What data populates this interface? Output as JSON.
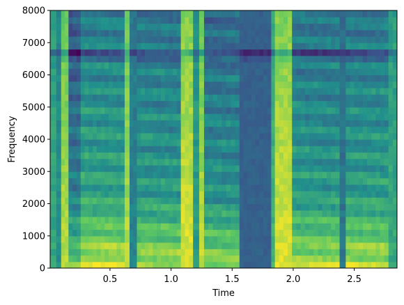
{
  "chart_data": {
    "type": "heatmap",
    "subtype": "spectrogram",
    "title": "",
    "xlabel": "Time",
    "ylabel": "Frequency",
    "xlim": [
      0.01,
      2.85
    ],
    "ylim": [
      0,
      8000
    ],
    "x_ticks": [
      0.5,
      1.0,
      1.5,
      2.0,
      2.5
    ],
    "x_tick_labels": [
      "0.5",
      "1.0",
      "1.5",
      "2.0",
      "2.5"
    ],
    "y_ticks": [
      0,
      1000,
      2000,
      3000,
      4000,
      5000,
      6000,
      7000,
      8000
    ],
    "y_tick_labels": [
      "0",
      "1000",
      "2000",
      "3000",
      "4000",
      "5000",
      "6000",
      "7000",
      "8000"
    ],
    "colormap": "viridis",
    "grid": false,
    "legend": "none",
    "dark_band_frequency": 6650,
    "segments": [
      {
        "t_start": 0.01,
        "t_end": 0.06,
        "level": 0.55,
        "kind": "noise"
      },
      {
        "t_start": 0.06,
        "t_end": 0.1,
        "level": 0.45,
        "kind": "noise"
      },
      {
        "t_start": 0.1,
        "t_end": 0.16,
        "level": 0.85,
        "kind": "fricative"
      },
      {
        "t_start": 0.16,
        "t_end": 0.26,
        "level": 0.55,
        "kind": "voiced"
      },
      {
        "t_start": 0.26,
        "t_end": 0.62,
        "level": 0.75,
        "kind": "voiced"
      },
      {
        "t_start": 0.62,
        "t_end": 0.66,
        "level": 0.85,
        "kind": "fricative"
      },
      {
        "t_start": 0.66,
        "t_end": 0.72,
        "level": 0.4,
        "kind": "noise"
      },
      {
        "t_start": 0.72,
        "t_end": 1.08,
        "level": 0.7,
        "kind": "voiced"
      },
      {
        "t_start": 1.08,
        "t_end": 1.18,
        "level": 0.9,
        "kind": "fricative"
      },
      {
        "t_start": 1.18,
        "t_end": 1.23,
        "level": 0.5,
        "kind": "noise"
      },
      {
        "t_start": 1.23,
        "t_end": 1.27,
        "level": 0.85,
        "kind": "fricative"
      },
      {
        "t_start": 1.27,
        "t_end": 1.56,
        "level": 0.65,
        "kind": "voiced"
      },
      {
        "t_start": 1.56,
        "t_end": 1.82,
        "level": 0.25,
        "kind": "silence"
      },
      {
        "t_start": 1.82,
        "t_end": 1.85,
        "level": 0.6,
        "kind": "noise"
      },
      {
        "t_start": 1.85,
        "t_end": 1.99,
        "level": 0.9,
        "kind": "fricative"
      },
      {
        "t_start": 1.99,
        "t_end": 2.38,
        "level": 0.7,
        "kind": "voiced"
      },
      {
        "t_start": 2.38,
        "t_end": 2.43,
        "level": 0.35,
        "kind": "noise"
      },
      {
        "t_start": 2.43,
        "t_end": 2.78,
        "level": 0.72,
        "kind": "voiced"
      },
      {
        "t_start": 2.78,
        "t_end": 2.85,
        "level": 0.55,
        "kind": "noise"
      }
    ]
  }
}
